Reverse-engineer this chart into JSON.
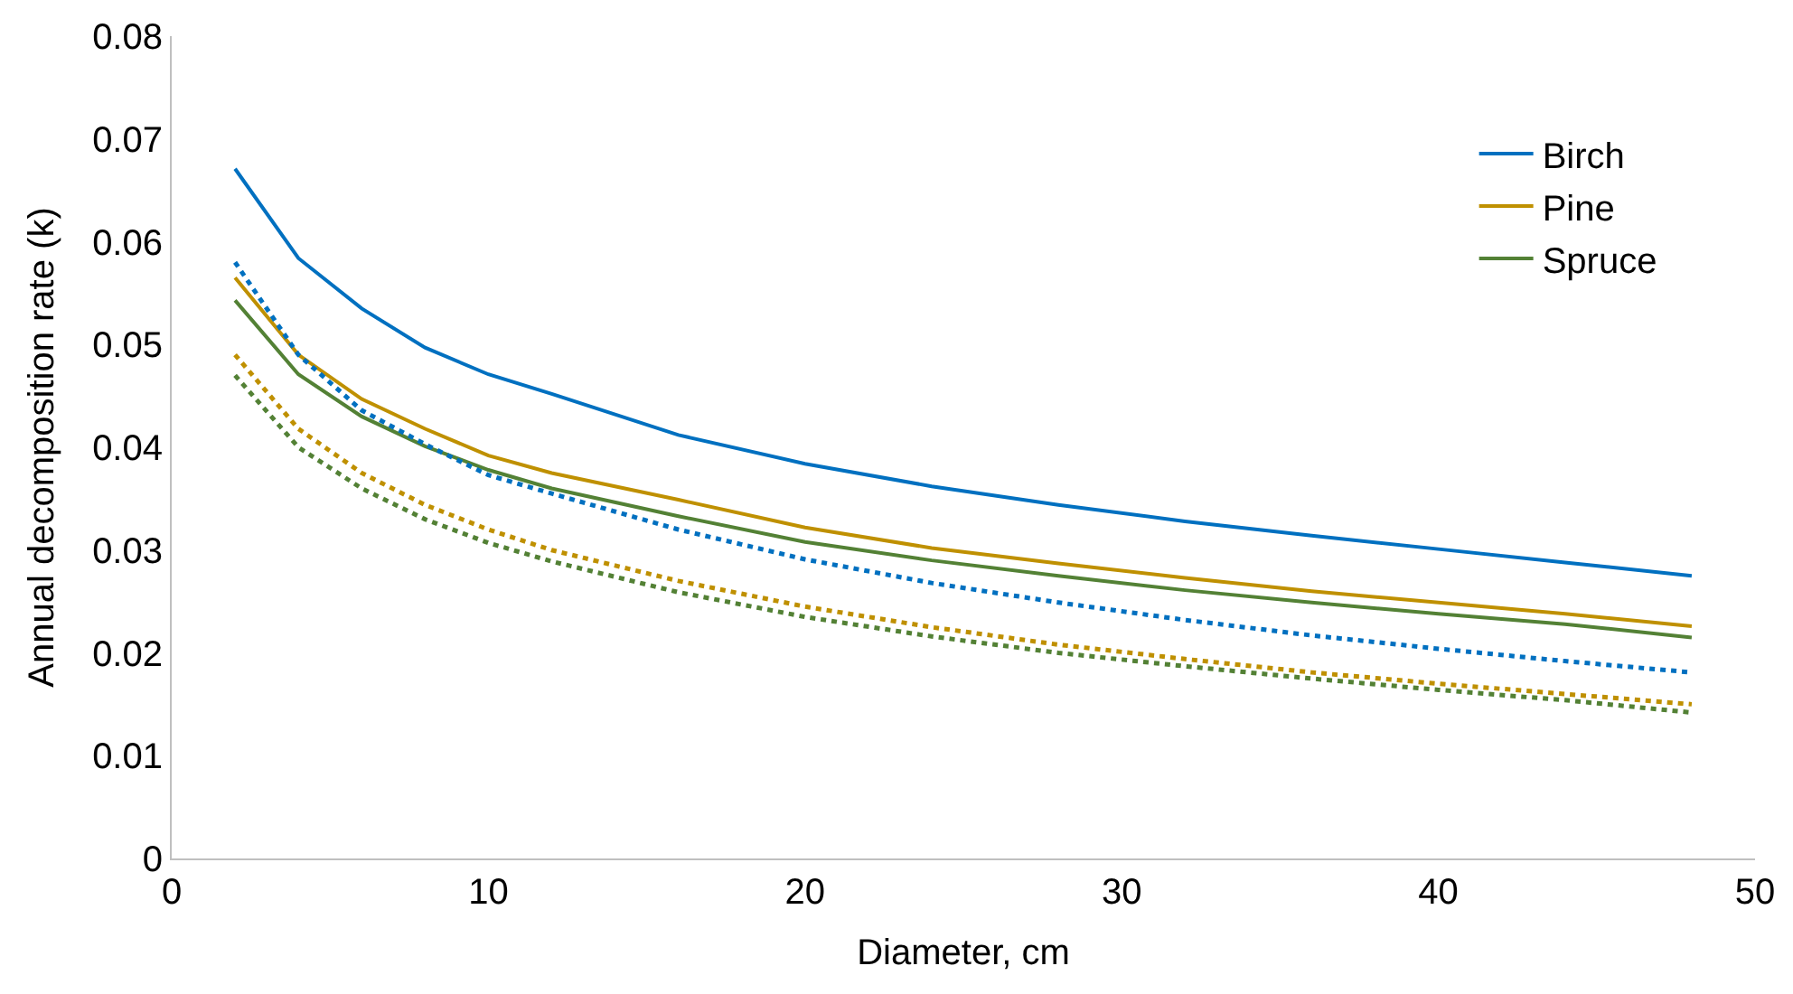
{
  "chart_data": {
    "type": "line",
    "xlabel": "Diameter, cm",
    "ylabel": "Annual decomposition rate (k)",
    "x": [
      2,
      4,
      6,
      8,
      10,
      12,
      16,
      20,
      24,
      28,
      32,
      36,
      40,
      44,
      48
    ],
    "xlim": [
      0,
      50
    ],
    "xticks": [
      0,
      10,
      20,
      30,
      40,
      50
    ],
    "ylim": [
      0,
      0.08
    ],
    "yticks": [
      0,
      0.01,
      0.02,
      0.03,
      0.04,
      0.05,
      0.06,
      0.07,
      0.08
    ],
    "legend": "top right",
    "marker": "none",
    "series": [
      {
        "name": "Birch",
        "color": "#0070c0",
        "line_style": "solid",
        "values": [
          0.0671,
          0.0584,
          0.0535,
          0.0497,
          0.0471,
          0.0452,
          0.0412,
          0.0384,
          0.0362,
          0.0344,
          0.0328,
          0.0314,
          0.0301,
          0.0288,
          0.0275
        ]
      },
      {
        "name": "Pine",
        "color": "#bf9000",
        "line_style": "solid",
        "values": [
          0.0565,
          0.049,
          0.0447,
          0.0418,
          0.0392,
          0.0375,
          0.0349,
          0.0322,
          0.0302,
          0.0287,
          0.0273,
          0.026,
          0.0249,
          0.0238,
          0.0226
        ]
      },
      {
        "name": "Spruce",
        "color": "#538135",
        "line_style": "solid",
        "values": [
          0.0543,
          0.0471,
          0.043,
          0.0401,
          0.0378,
          0.036,
          0.0333,
          0.0308,
          0.029,
          0.0275,
          0.0261,
          0.0249,
          0.0238,
          0.0228,
          0.0215
        ]
      },
      {
        "color": "#0070c0",
        "line_style": "dotted",
        "values": [
          0.058,
          0.049,
          0.0436,
          0.0403,
          0.0373,
          0.0355,
          0.032,
          0.0291,
          0.0268,
          0.0249,
          0.0232,
          0.0217,
          0.0204,
          0.0192,
          0.0181
        ]
      },
      {
        "color": "#bf9000",
        "line_style": "dotted",
        "values": [
          0.049,
          0.0418,
          0.0375,
          0.0344,
          0.032,
          0.03,
          0.027,
          0.0245,
          0.0225,
          0.0208,
          0.0194,
          0.0181,
          0.017,
          0.016,
          0.015
        ]
      },
      {
        "color": "#538135",
        "line_style": "dotted",
        "values": [
          0.047,
          0.04,
          0.036,
          0.033,
          0.0307,
          0.0289,
          0.0259,
          0.0235,
          0.0216,
          0.02,
          0.0187,
          0.0175,
          0.0164,
          0.0154,
          0.0142
        ]
      }
    ]
  }
}
